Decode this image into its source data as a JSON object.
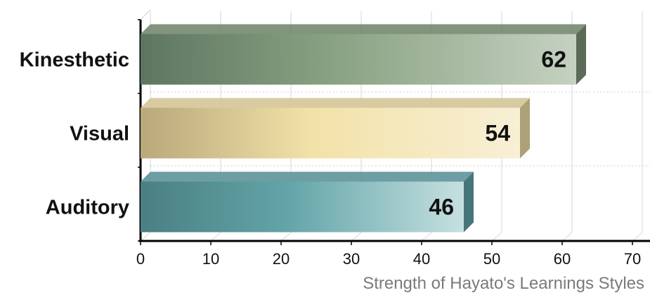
{
  "chart_data": {
    "type": "bar",
    "orientation": "horizontal",
    "three_d": true,
    "categories": [
      "Kinesthetic",
      "Visual",
      "Auditory"
    ],
    "values": [
      62,
      54,
      46
    ],
    "colors": [
      "#7a8f74",
      "#e7d7a2",
      "#5f9ea3"
    ],
    "xlabel": "Strength of Hayato's Learnings Styles",
    "ylabel": "",
    "xlim": [
      0,
      70
    ],
    "xticks": [
      0,
      10,
      20,
      30,
      40,
      50,
      60,
      70
    ],
    "grid": true,
    "legend": "none"
  }
}
